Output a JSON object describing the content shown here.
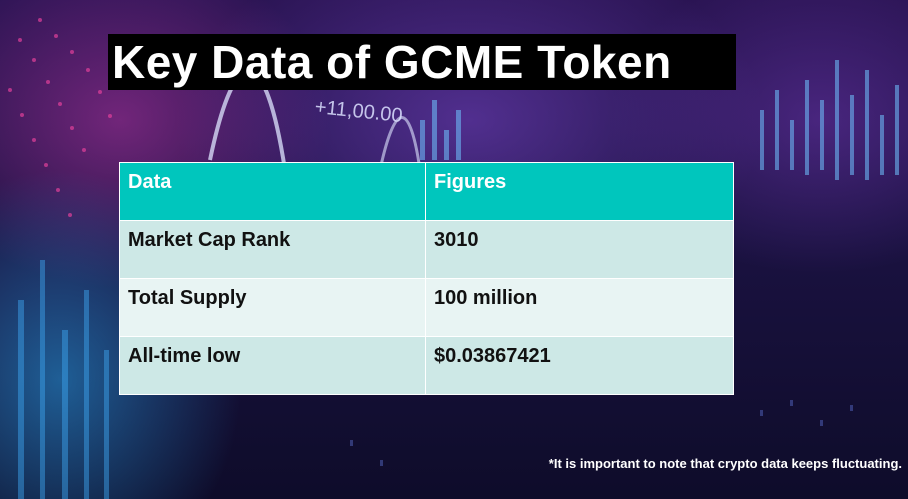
{
  "slide": {
    "title": "Key Data of GCME Token",
    "background_ticker": "+11,00.00",
    "note": "*It is important to note that crypto data keeps fluctuating."
  },
  "table": {
    "headers": [
      "Data",
      "Figures"
    ],
    "rows": [
      [
        "Market Cap Rank",
        "3010"
      ],
      [
        "Total Supply",
        "100 million"
      ],
      [
        "All-time low",
        "$0.03867421"
      ]
    ]
  },
  "colors": {
    "header_bg": "#00c6bd",
    "row_dark": "#cde8e6",
    "row_light": "#e8f4f3",
    "title_bg": "#000000"
  }
}
